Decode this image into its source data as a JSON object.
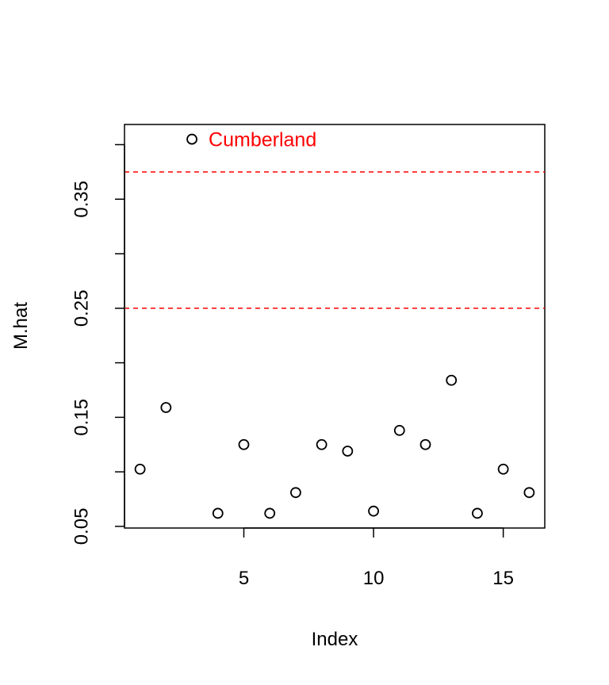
{
  "chart_data": {
    "type": "scatter",
    "xlabel": "Index",
    "ylabel": "M.hat",
    "x": [
      1,
      2,
      3,
      4,
      5,
      6,
      7,
      8,
      9,
      10,
      11,
      12,
      13,
      14,
      15,
      16
    ],
    "y": [
      0.1025,
      0.159,
      0.405,
      0.062,
      0.125,
      0.062,
      0.081,
      0.125,
      0.119,
      0.064,
      0.138,
      0.125,
      0.184,
      0.062,
      0.1025,
      0.081
    ],
    "xlim": [
      0.4,
      16.6
    ],
    "ylim": [
      0.0485,
      0.4185
    ],
    "x_ticks": [
      5,
      10,
      15
    ],
    "y_ticks": [
      0.05,
      0.1,
      0.15,
      0.2,
      0.25,
      0.3,
      0.35,
      0.4
    ],
    "y_tick_labels": {
      "0.05": "0.05",
      "0.15": "0.15",
      "0.25": "0.25",
      "0.35": "0.35"
    },
    "reference_lines": [
      {
        "y": 0.25,
        "color": "#ff0000",
        "style": "dashed"
      },
      {
        "y": 0.375,
        "color": "#ff0000",
        "style": "dashed"
      }
    ],
    "annotations": [
      {
        "text": "Cumberland",
        "x": 3,
        "y": 0.405,
        "color": "#ff0000"
      }
    ],
    "grid": false,
    "marker": "open-circle"
  }
}
